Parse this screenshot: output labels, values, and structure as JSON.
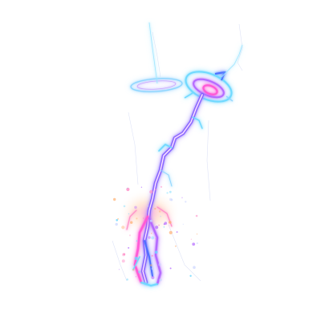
{
  "scene": {
    "description_tag": "lightning-sketch-illustration",
    "background": "#ffffff",
    "colors": {
      "cyan": "#6fd9ff",
      "blue": "#4b6dff",
      "violet": "#b56bff",
      "magenta": "#ff5ad6",
      "pink": "#ff8fc8",
      "orange": "#ffb072",
      "core": "#ffffff",
      "faint": "#c9d4ff"
    }
  }
}
